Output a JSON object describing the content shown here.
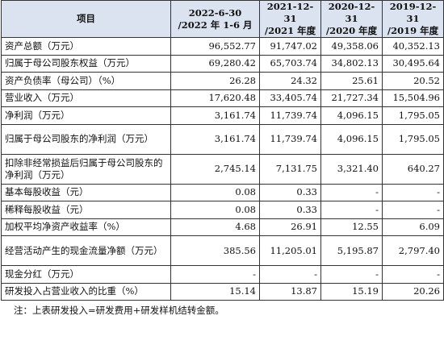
{
  "table": {
    "headers": [
      {
        "line1": "项目",
        "line2": ""
      },
      {
        "line1": "2022-6-30",
        "line2": "/2022 年 1-6 月"
      },
      {
        "line1": "2021-12-31",
        "line2": "/2021 年度"
      },
      {
        "line1": "2020-12-31",
        "line2": "/2020 年度"
      },
      {
        "line1": "2019-12-31",
        "line2": "/2019 年度"
      }
    ],
    "rows": [
      {
        "label": "资产总额（万元）",
        "values": [
          "96,552.77",
          "91,747.02",
          "49,358.06",
          "40,352.13"
        ],
        "tall": false
      },
      {
        "label": "归属于母公司股东权益（万元）",
        "values": [
          "69,280.42",
          "65,703.74",
          "34,802.13",
          "30,495.64"
        ],
        "tall": false
      },
      {
        "label": "资产负债率（母公司）（%）",
        "values": [
          "26.28",
          "24.32",
          "25.61",
          "20.52"
        ],
        "tall": false
      },
      {
        "label": "营业收入（万元）",
        "values": [
          "17,620.48",
          "33,405.74",
          "21,727.34",
          "15,504.96"
        ],
        "tall": false
      },
      {
        "label": "净利润（万元）",
        "values": [
          "3,161.74",
          "11,739.74",
          "4,096.15",
          "1,795.05"
        ],
        "tall": false
      },
      {
        "label": "归属于母公司股东的净利润（万元）",
        "values": [
          "3,161.74",
          "11,739.74",
          "4,096.15",
          "1,795.05"
        ],
        "tall": true
      },
      {
        "label": "扣除非经常损益后归属于母公司股东的净利润（万元）",
        "values": [
          "2,745.14",
          "7,131.75",
          "3,321.40",
          "640.27"
        ],
        "tall": true
      },
      {
        "label": "基本每股收益（元）",
        "values": [
          "0.08",
          "0.33",
          "-",
          "-"
        ],
        "tall": false
      },
      {
        "label": "稀释每股收益（元）",
        "values": [
          "0.08",
          "0.33",
          "-",
          "-"
        ],
        "tall": false
      },
      {
        "label": "加权平均净资产收益率（%）",
        "values": [
          "4.68",
          "26.91",
          "12.55",
          "6.09"
        ],
        "tall": false
      },
      {
        "label": "经营活动产生的现金流量净额（万元）",
        "values": [
          "385.56",
          "11,205.01",
          "5,195.87",
          "2,797.40"
        ],
        "tall": true
      },
      {
        "label": "现金分红（万元）",
        "values": [
          "-",
          "-",
          "-",
          "-"
        ],
        "tall": false
      },
      {
        "label": "研发投入占营业收入的比重（%）",
        "values": [
          "15.14",
          "13.87",
          "15.19",
          "20.26"
        ],
        "tall": false
      }
    ]
  },
  "note": "注：上表研发投入=研发费用+研发样机结转金额。"
}
